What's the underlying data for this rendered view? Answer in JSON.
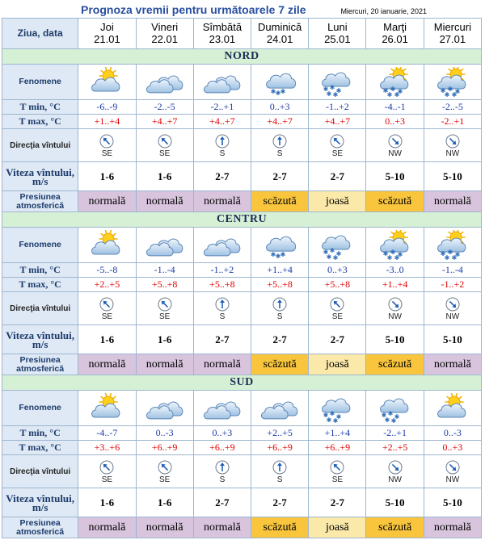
{
  "title": "Prognoza vremii pentru următoarele 7 zile",
  "date": "Miercuri, 20 ianuarie, 2021",
  "header_label": "Ziua, data",
  "days": [
    {
      "name": "Joi",
      "date": "21.01"
    },
    {
      "name": "Vineri",
      "date": "22.01"
    },
    {
      "name": "Sîmbătă",
      "date": "23.01"
    },
    {
      "name": "Duminică",
      "date": "24.01"
    },
    {
      "name": "Luni",
      "date": "25.01"
    },
    {
      "name": "Marţi",
      "date": "26.01"
    },
    {
      "name": "Miercuri",
      "date": "27.01"
    }
  ],
  "row_labels": {
    "fenomene": "Fenomene",
    "tmin": "T min, °C",
    "tmax": "T max, °C",
    "directia": "Direcţia vîntului",
    "viteza": "Viteza vîntului, m/s",
    "presiunea": "Presiunea atmosferică"
  },
  "regions": [
    {
      "name": "NORD",
      "fenomene": [
        "sun-cloud",
        "cloud",
        "cloud",
        "cloud-light-snow",
        "cloud-snow",
        "sun-cloud-snow",
        "sun-cloud-snow"
      ],
      "tmin": [
        "-6..-9",
        "-2..-5",
        "-2..+1",
        "0..+3",
        "-1..+2",
        "-4..-1",
        "-2..-5"
      ],
      "tmax": [
        "+1..+4",
        "+4..+7",
        "+4..+7",
        "+4..+7",
        "+4..+7",
        "0..+3",
        "-2..+1"
      ],
      "dir": [
        "SE",
        "SE",
        "S",
        "S",
        "SE",
        "NW",
        "NW"
      ],
      "viteza": [
        "1-6",
        "1-6",
        "2-7",
        "2-7",
        "2-7",
        "5-10",
        "5-10"
      ],
      "presiune": [
        {
          "text": "normală",
          "kind": "normal"
        },
        {
          "text": "normală",
          "kind": "normal"
        },
        {
          "text": "normală",
          "kind": "normal"
        },
        {
          "text": "scăzută",
          "kind": "low"
        },
        {
          "text": "joasă",
          "kind": "joasa"
        },
        {
          "text": "scăzută",
          "kind": "low"
        },
        {
          "text": "normală",
          "kind": "normal"
        }
      ]
    },
    {
      "name": "CENTRU",
      "fenomene": [
        "sun-cloud",
        "cloud",
        "cloud",
        "cloud-light-snow",
        "cloud-snow",
        "sun-cloud-snow",
        "sun-cloud-snow"
      ],
      "tmin": [
        "-5..-8",
        "-1..-4",
        "-1..+2",
        "+1..+4",
        "0..+3",
        "-3..0",
        "-1..-4"
      ],
      "tmax": [
        "+2..+5",
        "+5..+8",
        "+5..+8",
        "+5..+8",
        "+5..+8",
        "+1..+4",
        "-1..+2"
      ],
      "dir": [
        "SE",
        "SE",
        "S",
        "S",
        "SE",
        "NW",
        "NW"
      ],
      "viteza": [
        "1-6",
        "1-6",
        "2-7",
        "2-7",
        "2-7",
        "5-10",
        "5-10"
      ],
      "presiune": [
        {
          "text": "normală",
          "kind": "normal"
        },
        {
          "text": "normală",
          "kind": "normal"
        },
        {
          "text": "normală",
          "kind": "normal"
        },
        {
          "text": "scăzută",
          "kind": "low"
        },
        {
          "text": "joasă",
          "kind": "joasa"
        },
        {
          "text": "scăzută",
          "kind": "low"
        },
        {
          "text": "normală",
          "kind": "normal"
        }
      ]
    },
    {
      "name": "SUD",
      "fenomene": [
        "sun-cloud",
        "cloud",
        "cloud",
        "cloud",
        "cloud-snow",
        "cloud-snow",
        "sun-cloud"
      ],
      "tmin": [
        "-4..-7",
        "0..-3",
        "0..+3",
        "+2..+5",
        "+1..+4",
        "-2..+1",
        "0..-3"
      ],
      "tmax": [
        "+3..+6",
        "+6..+9",
        "+6..+9",
        "+6..+9",
        "+6..+9",
        "+2..+5",
        "0..+3"
      ],
      "dir": [
        "SE",
        "SE",
        "S",
        "S",
        "SE",
        "NW",
        "NW"
      ],
      "viteza": [
        "1-6",
        "1-6",
        "2-7",
        "2-7",
        "2-7",
        "5-10",
        "5-10"
      ],
      "presiune": [
        {
          "text": "normală",
          "kind": "normal"
        },
        {
          "text": "normală",
          "kind": "normal"
        },
        {
          "text": "normală",
          "kind": "normal"
        },
        {
          "text": "scăzută",
          "kind": "low"
        },
        {
          "text": "joasă",
          "kind": "joasa"
        },
        {
          "text": "scăzută",
          "kind": "low"
        },
        {
          "text": "normală",
          "kind": "normal"
        }
      ]
    }
  ],
  "colors": {
    "title": "#2a4fa0",
    "tmin": "#1a3aa8",
    "tmax": "#e00000",
    "section_bg": "#d6f0d6",
    "label_bg": "#dfe9f5",
    "pressure_normal": "#d9c4de",
    "pressure_low": "#f8c53c",
    "pressure_joasa": "#fbe9a9"
  }
}
